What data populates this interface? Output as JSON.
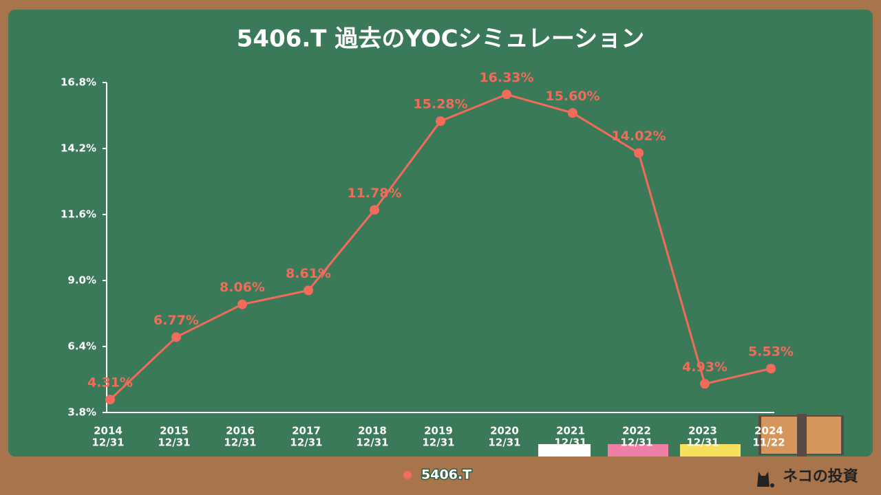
{
  "chart_data": {
    "type": "line",
    "title": "5406.T 過去のYOCシミュレーション",
    "categories": [
      [
        "2014",
        "12/31"
      ],
      [
        "2015",
        "12/31"
      ],
      [
        "2016",
        "12/31"
      ],
      [
        "2017",
        "12/31"
      ],
      [
        "2018",
        "12/31"
      ],
      [
        "2019",
        "12/31"
      ],
      [
        "2020",
        "12/31"
      ],
      [
        "2021",
        "12/31"
      ],
      [
        "2022",
        "12/31"
      ],
      [
        "2023",
        "12/31"
      ],
      [
        "2024",
        "11/22"
      ]
    ],
    "series": [
      {
        "name": "5406.T",
        "color": "#f26b5b",
        "values": [
          4.31,
          6.77,
          8.06,
          8.61,
          11.78,
          15.28,
          16.33,
          15.6,
          14.02,
          4.93,
          5.53
        ],
        "value_labels": [
          "4.31%",
          "6.77%",
          "8.06%",
          "8.61%",
          "11.78%",
          "15.28%",
          "16.33%",
          "15.60%",
          "14.02%",
          "4.93%",
          "5.53%"
        ]
      }
    ],
    "ylim": [
      3.8,
      16.8
    ],
    "yticks": [
      {
        "value": 3.8,
        "label": "3.8%"
      },
      {
        "value": 6.4,
        "label": "6.4%"
      },
      {
        "value": 9.0,
        "label": "9.0%"
      },
      {
        "value": 11.6,
        "label": "11.6%"
      },
      {
        "value": 14.2,
        "label": "14.2%"
      },
      {
        "value": 16.8,
        "label": "16.8%"
      }
    ],
    "grid": false,
    "legend": "bottom",
    "brand": "ネコの投資"
  }
}
